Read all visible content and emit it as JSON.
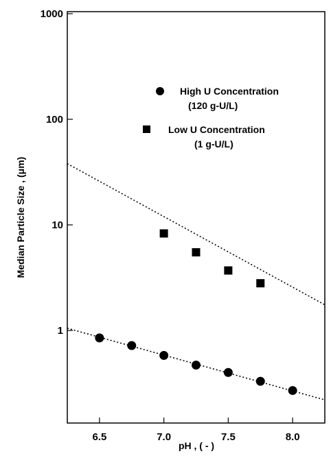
{
  "chart_data": {
    "type": "scatter",
    "xlabel": "pH , ( - )",
    "ylabel": "Median Particle Size , (μm)",
    "xlim": [
      6.25,
      8.25
    ],
    "ylim": [
      0.2,
      1000
    ],
    "yscale": "log",
    "x_ticks": [
      6.5,
      7.0,
      7.5,
      8.0
    ],
    "x_tick_labels": [
      "6.5",
      "7.0",
      "7.5",
      "8.0"
    ],
    "y_ticks": [
      1,
      10,
      100,
      1000
    ],
    "y_tick_labels": [
      "1",
      "10",
      "100",
      "1000"
    ],
    "grid": false,
    "legend_position": "top-right",
    "series": [
      {
        "name": "High U Concentration",
        "name_line2": "(120 g-U/L)",
        "marker": "circle",
        "x": [
          6.5,
          6.75,
          7.0,
          7.25,
          7.5,
          7.75,
          8.0
        ],
        "y": [
          0.85,
          0.72,
          0.58,
          0.47,
          0.4,
          0.33,
          0.27
        ],
        "fit_x": [
          6.25,
          8.25
        ],
        "fit_y": [
          1.05,
          0.22
        ]
      },
      {
        "name": "Low  U Concentration",
        "name_line2": "(1 g-U/L)",
        "marker": "square",
        "x": [
          7.0,
          7.25,
          7.5,
          7.75
        ],
        "y": [
          8.3,
          5.5,
          3.7,
          2.8
        ],
        "fit_x": [
          6.25,
          8.25
        ],
        "fit_y": [
          38,
          1.75
        ]
      }
    ]
  }
}
